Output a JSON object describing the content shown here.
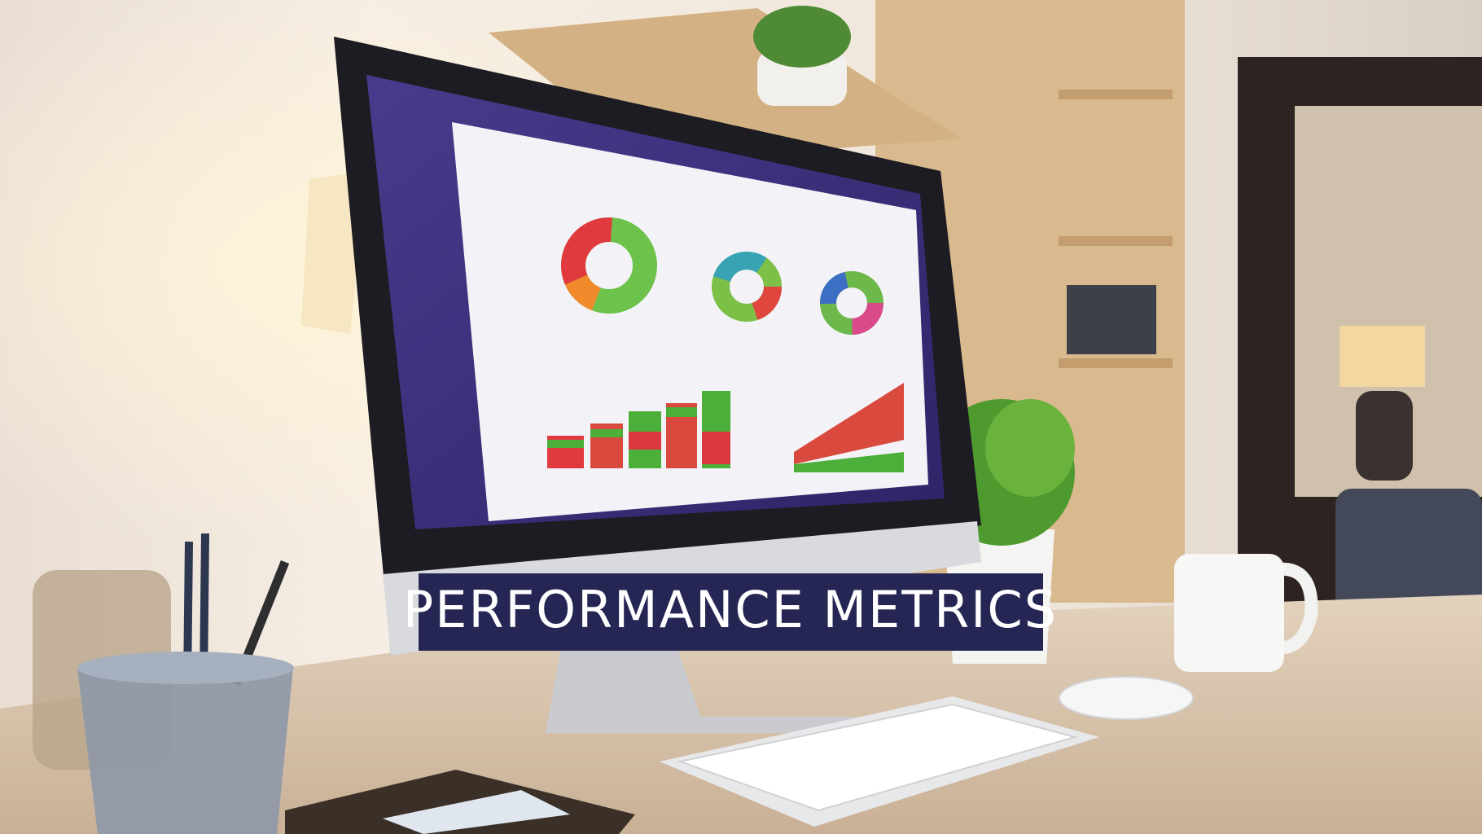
{
  "banner": {
    "title": "PERFORMANCE METRICS"
  }
}
